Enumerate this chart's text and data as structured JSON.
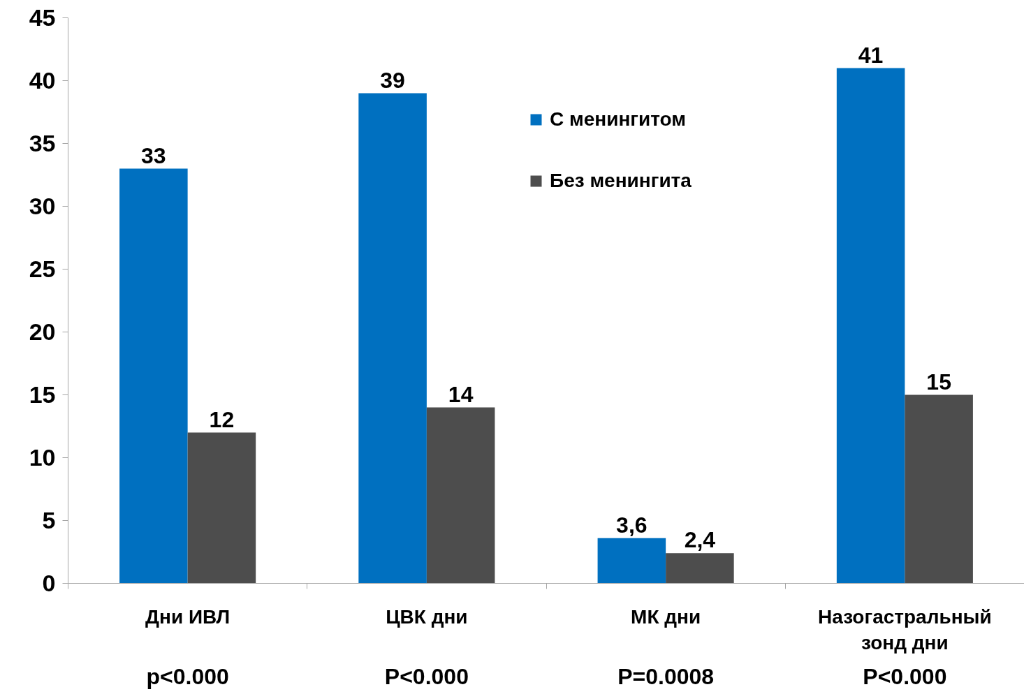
{
  "chart_data": {
    "type": "bar",
    "categories": [
      "Дни ИВЛ",
      "ЦВК дни",
      "МК дни",
      "Назогастральный зонд дни"
    ],
    "series": [
      {
        "name": "С менингитом",
        "color": "#0070c0",
        "values": [
          33,
          39,
          3.6,
          41
        ],
        "value_labels": [
          "33",
          "39",
          "3,6",
          "41"
        ]
      },
      {
        "name": "Без менингита",
        "color": "#4d4d4d",
        "values": [
          12,
          14,
          2.4,
          15
        ],
        "value_labels": [
          "12",
          "14",
          "2,4",
          "15"
        ]
      }
    ],
    "ylim": [
      0,
      45
    ],
    "yticks": [
      0,
      5,
      10,
      15,
      20,
      25,
      30,
      35,
      40,
      45
    ],
    "legend": "top",
    "annotations": [
      "p<0.000",
      "P<0.000",
      "P=0.0008",
      "P<0.000"
    ]
  }
}
